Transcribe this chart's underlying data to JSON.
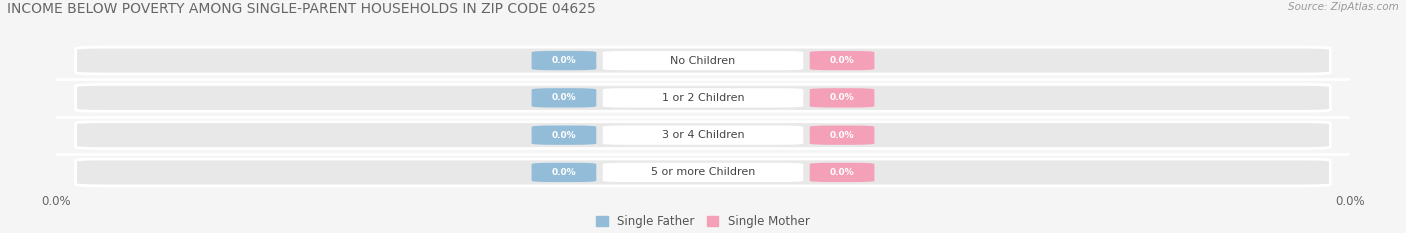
{
  "title": "INCOME BELOW POVERTY AMONG SINGLE-PARENT HOUSEHOLDS IN ZIP CODE 04625",
  "source": "Source: ZipAtlas.com",
  "categories": [
    "No Children",
    "1 or 2 Children",
    "3 or 4 Children",
    "5 or more Children"
  ],
  "single_father_values": [
    0.0,
    0.0,
    0.0,
    0.0
  ],
  "single_mother_values": [
    0.0,
    0.0,
    0.0,
    0.0
  ],
  "father_color": "#92bcd8",
  "mother_color": "#f4a0b8",
  "bar_bg_color": "#e8e8e8",
  "background_color": "#f5f5f5",
  "title_fontsize": 10,
  "source_fontsize": 7.5,
  "axis_label_fontsize": 8.5,
  "legend_fontsize": 8.5,
  "category_fontsize": 8,
  "pill_fontsize": 6.5
}
